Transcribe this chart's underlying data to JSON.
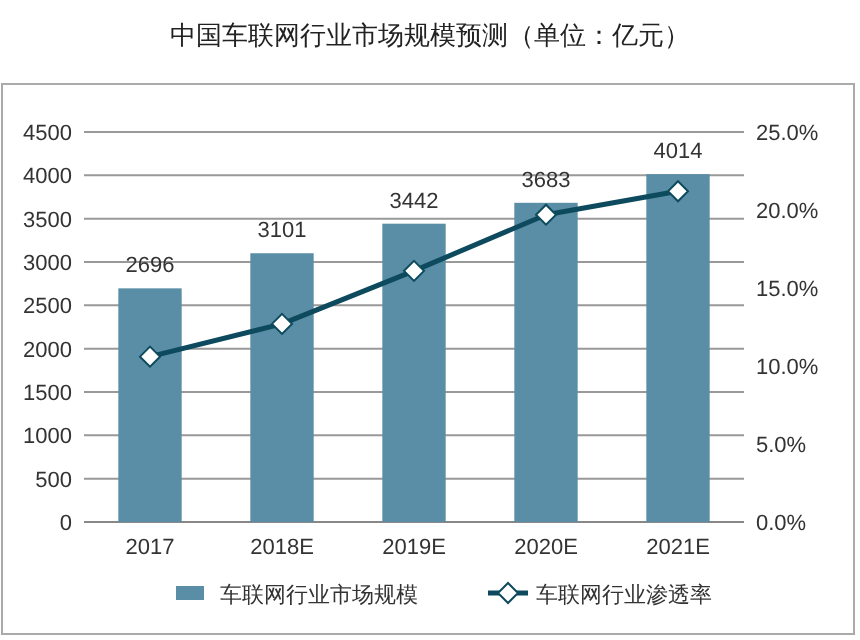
{
  "chart_data": {
    "type": "bar",
    "title": "中国车联网行业市场规模预测（单位：亿元）",
    "categories": [
      "2017",
      "2018E",
      "2019E",
      "2020E",
      "2021E"
    ],
    "series": [
      {
        "name": "车联网行业市场规模",
        "color": "#5a8ea6",
        "values": [
          2696,
          3101,
          3442,
          3683,
          4014
        ],
        "data_labels": true
      },
      {
        "name": "车联网行业渗透率",
        "type": "line",
        "axis": "y2",
        "color": "#0e4a5e",
        "marker": "diamond",
        "values": [
          10.6,
          12.7,
          16.1,
          19.7,
          21.2
        ]
      }
    ],
    "ylim": [
      0,
      4500
    ],
    "yticks": [
      0,
      500,
      1000,
      1500,
      2000,
      2500,
      3000,
      3500,
      4000,
      4500
    ],
    "y2lim": [
      0,
      25
    ],
    "y2ticks": [
      {
        "value": 0,
        "label": "0.0%"
      },
      {
        "value": 5,
        "label": "5.0%"
      },
      {
        "value": 10,
        "label": "10.0%"
      },
      {
        "value": 15,
        "label": "15.0%"
      },
      {
        "value": 20,
        "label": "20.0%"
      },
      {
        "value": 25,
        "label": "25.0%"
      }
    ],
    "grid": "y",
    "legend": "bottom"
  }
}
